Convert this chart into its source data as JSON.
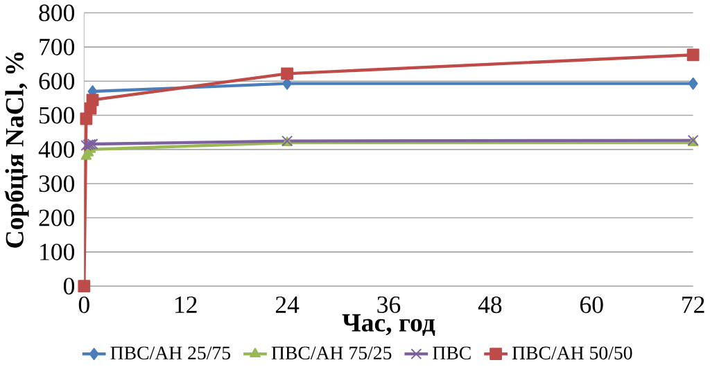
{
  "chart_data": {
    "type": "line",
    "xlabel": "Час, год",
    "ylabel": "Сорбція NaCl, %",
    "xlim": [
      0,
      72
    ],
    "xticks": [
      0,
      12,
      24,
      36,
      48,
      60,
      72
    ],
    "ylim": [
      0,
      800
    ],
    "yticks": [
      0,
      100,
      200,
      300,
      400,
      500,
      600,
      700,
      800
    ],
    "grid": "y",
    "legend": "bottom",
    "series": [
      {
        "name": "ПВС/АН 25/75",
        "color": "#4a7ebb",
        "marker": "diamond",
        "x": [
          1,
          24,
          72
        ],
        "values": [
          570,
          593,
          593
        ]
      },
      {
        "name": "ПВС/АН 75/25",
        "color": "#98b954",
        "marker": "triangle",
        "x": [
          0.25,
          0.5,
          0.75,
          1,
          24,
          72
        ],
        "values": [
          380,
          390,
          400,
          null,
          420,
          420
        ]
      },
      {
        "name": "ПВС",
        "color": "#7d60a0",
        "marker": "cross",
        "x": [
          0.25,
          0.5,
          0.75,
          1,
          24,
          72
        ],
        "values": [
          412,
          414,
          415,
          416,
          425,
          427
        ]
      },
      {
        "name": "ПВС/АН 50/50",
        "color": "#be4b48",
        "marker": "square",
        "x": [
          0,
          0.25,
          0.5,
          0.75,
          1,
          24,
          72
        ],
        "values": [
          0,
          490,
          null,
          520,
          545,
          622,
          677
        ]
      }
    ]
  }
}
